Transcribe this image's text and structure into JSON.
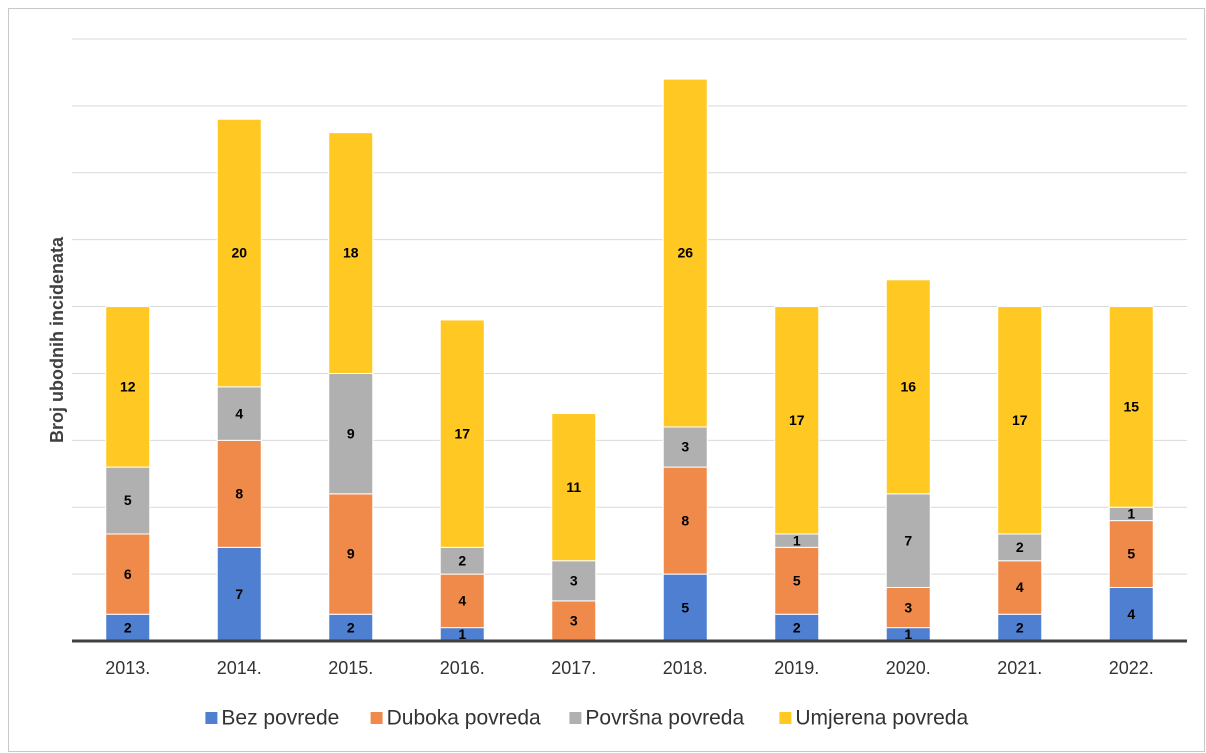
{
  "chart_data": {
    "type": "stacked_bar",
    "y_label": "Broj ubodnih incidenata",
    "categories": [
      "2013.",
      "2014.",
      "2015.",
      "2016.",
      "2017.",
      "2018.",
      "2019.",
      "2020.",
      "2021.",
      "2022."
    ],
    "series": [
      {
        "name": "Bez povrede",
        "color": "#4f7fd0",
        "values": [
          2,
          7,
          2,
          1,
          null,
          5,
          2,
          1,
          2,
          4
        ]
      },
      {
        "name": "Duboka povreda",
        "color": "#f08a4b",
        "values": [
          6,
          8,
          9,
          4,
          3,
          8,
          5,
          3,
          4,
          5
        ]
      },
      {
        "name": "Površna povreda",
        "color": "#b0b0b0",
        "values": [
          5,
          4,
          9,
          2,
          3,
          3,
          1,
          7,
          2,
          1
        ]
      },
      {
        "name": "Umjerena povreda",
        "color": "#ffc822",
        "values": [
          12,
          20,
          18,
          17,
          11,
          26,
          17,
          16,
          17,
          15
        ]
      }
    ],
    "ylim": [
      0,
      45
    ],
    "yticks": [
      0,
      5,
      10,
      15,
      20,
      25,
      30,
      35,
      40,
      45
    ],
    "grid": true,
    "legend": "bottom"
  }
}
